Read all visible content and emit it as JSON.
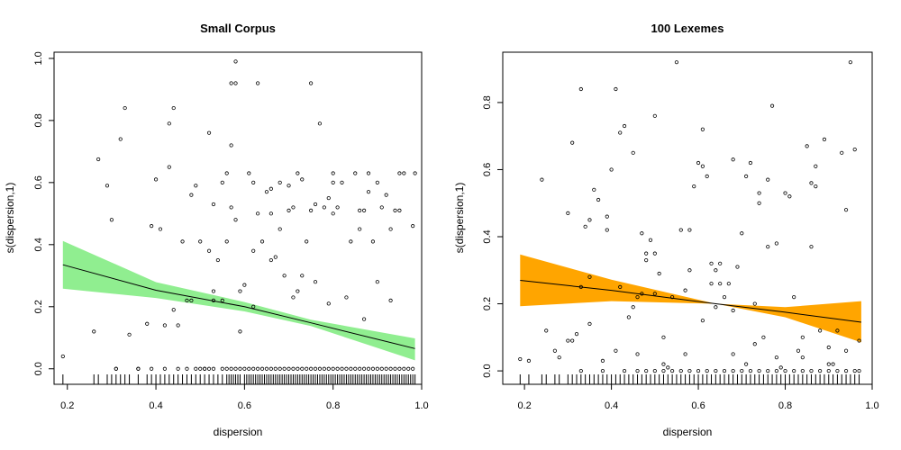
{
  "chart_data": [
    {
      "type": "scatter",
      "title": "Small Corpus",
      "xlabel": "dispersion",
      "ylabel": "s(dispersion,1)",
      "xlim": [
        0.17,
        1.0
      ],
      "ylim": [
        -0.05,
        1.02
      ],
      "xticks": [
        "0.2",
        "0.4",
        "0.6",
        "0.8",
        "1.0"
      ],
      "yticks": [
        "0.0",
        "0.2",
        "0.4",
        "0.6",
        "0.8",
        "1.0"
      ],
      "band_color": "#90EE90",
      "grid": false,
      "smooth": {
        "x": [
          0.19,
          0.4,
          0.6,
          0.75,
          0.985
        ],
        "fit": [
          0.335,
          0.253,
          0.2,
          0.148,
          0.065
        ],
        "lower": [
          0.258,
          0.228,
          0.185,
          0.138,
          0.027
        ],
        "upper": [
          0.412,
          0.279,
          0.215,
          0.158,
          0.098
        ]
      },
      "points": [
        [
          0.19,
          0.04
        ],
        [
          0.26,
          0.12
        ],
        [
          0.27,
          0.675
        ],
        [
          0.29,
          0.59
        ],
        [
          0.3,
          0.48
        ],
        [
          0.31,
          0.0
        ],
        [
          0.32,
          0.74
        ],
        [
          0.33,
          0.84
        ],
        [
          0.34,
          0.11
        ],
        [
          0.36,
          0.0
        ],
        [
          0.38,
          0.145
        ],
        [
          0.39,
          0.46
        ],
        [
          0.4,
          0.61
        ],
        [
          0.41,
          0.45
        ],
        [
          0.42,
          0.14
        ],
        [
          0.43,
          0.65
        ],
        [
          0.43,
          0.79
        ],
        [
          0.44,
          0.19
        ],
        [
          0.44,
          0.84
        ],
        [
          0.45,
          0.14
        ],
        [
          0.46,
          0.41
        ],
        [
          0.47,
          0.22
        ],
        [
          0.48,
          0.56
        ],
        [
          0.48,
          0.22
        ],
        [
          0.49,
          0.59
        ],
        [
          0.5,
          0.41
        ],
        [
          0.51,
          0.0
        ],
        [
          0.52,
          0.76
        ],
        [
          0.52,
          0.38
        ],
        [
          0.53,
          0.25
        ],
        [
          0.53,
          0.53
        ],
        [
          0.54,
          0.35
        ],
        [
          0.55,
          0.6
        ],
        [
          0.55,
          0.22
        ],
        [
          0.56,
          0.41
        ],
        [
          0.56,
          0.63
        ],
        [
          0.57,
          0.92
        ],
        [
          0.57,
          0.72
        ],
        [
          0.57,
          0.52
        ],
        [
          0.58,
          0.92
        ],
        [
          0.58,
          0.48
        ],
        [
          0.58,
          0.99
        ],
        [
          0.59,
          0.12
        ],
        [
          0.59,
          0.25
        ],
        [
          0.6,
          0.27
        ],
        [
          0.61,
          0.63
        ],
        [
          0.62,
          0.38
        ],
        [
          0.62,
          0.6
        ],
        [
          0.63,
          0.92
        ],
        [
          0.63,
          0.5
        ],
        [
          0.64,
          0.41
        ],
        [
          0.65,
          0.57
        ],
        [
          0.66,
          0.35
        ],
        [
          0.66,
          0.5
        ],
        [
          0.67,
          0.36
        ],
        [
          0.68,
          0.6
        ],
        [
          0.69,
          0.3
        ],
        [
          0.7,
          0.51
        ],
        [
          0.7,
          0.59
        ],
        [
          0.71,
          0.52
        ],
        [
          0.72,
          0.25
        ],
        [
          0.72,
          0.63
        ],
        [
          0.73,
          0.61
        ],
        [
          0.74,
          0.41
        ],
        [
          0.75,
          0.51
        ],
        [
          0.75,
          0.92
        ],
        [
          0.76,
          0.53
        ],
        [
          0.77,
          0.79
        ],
        [
          0.78,
          0.52
        ],
        [
          0.79,
          0.21
        ],
        [
          0.8,
          0.6
        ],
        [
          0.8,
          0.63
        ],
        [
          0.81,
          0.52
        ],
        [
          0.82,
          0.6
        ],
        [
          0.83,
          0.23
        ],
        [
          0.84,
          0.41
        ],
        [
          0.85,
          0.63
        ],
        [
          0.86,
          0.51
        ],
        [
          0.87,
          0.16
        ],
        [
          0.88,
          0.57
        ],
        [
          0.88,
          0.63
        ],
        [
          0.89,
          0.41
        ],
        [
          0.9,
          0.28
        ],
        [
          0.91,
          0.52
        ],
        [
          0.92,
          0.56
        ],
        [
          0.93,
          0.22
        ],
        [
          0.94,
          0.51
        ],
        [
          0.95,
          0.51
        ],
        [
          0.96,
          0.63
        ],
        [
          0.98,
          0.46
        ],
        [
          0.985,
          0.63
        ],
        [
          0.53,
          0.22
        ],
        [
          0.62,
          0.2
        ],
        [
          0.66,
          0.58
        ],
        [
          0.68,
          0.45
        ],
        [
          0.73,
          0.3
        ],
        [
          0.76,
          0.28
        ],
        [
          0.8,
          0.5
        ],
        [
          0.86,
          0.45
        ],
        [
          0.9,
          0.6
        ],
        [
          0.93,
          0.45
        ],
        [
          0.95,
          0.63
        ],
        [
          0.71,
          0.23
        ],
        [
          0.79,
          0.55
        ],
        [
          0.87,
          0.51
        ]
      ],
      "zero_points": [
        0.31,
        0.36,
        0.39,
        0.42,
        0.45,
        0.47,
        0.49,
        0.5,
        0.51,
        0.52,
        0.53,
        0.55,
        0.56,
        0.57,
        0.58,
        0.59,
        0.6,
        0.61,
        0.62,
        0.63,
        0.64,
        0.65,
        0.66,
        0.67,
        0.68,
        0.69,
        0.7,
        0.71,
        0.72,
        0.73,
        0.74,
        0.75,
        0.76,
        0.77,
        0.78,
        0.79,
        0.8,
        0.81,
        0.82,
        0.83,
        0.84,
        0.85,
        0.86,
        0.87,
        0.88,
        0.89,
        0.9,
        0.91,
        0.92,
        0.93,
        0.94,
        0.95,
        0.96,
        0.97,
        0.98
      ],
      "rug": [
        0.19,
        0.26,
        0.27,
        0.29,
        0.3,
        0.31,
        0.32,
        0.33,
        0.34,
        0.36,
        0.38,
        0.39,
        0.4,
        0.41,
        0.42,
        0.43,
        0.44,
        0.45,
        0.46,
        0.47,
        0.48,
        0.49,
        0.5,
        0.51,
        0.52,
        0.53,
        0.54,
        0.55,
        0.56,
        0.565,
        0.57,
        0.575,
        0.58,
        0.585,
        0.59,
        0.6,
        0.605,
        0.61,
        0.615,
        0.62,
        0.625,
        0.63,
        0.635,
        0.64,
        0.645,
        0.65,
        0.655,
        0.66,
        0.665,
        0.67,
        0.675,
        0.68,
        0.685,
        0.69,
        0.695,
        0.7,
        0.705,
        0.71,
        0.715,
        0.72,
        0.725,
        0.73,
        0.735,
        0.74,
        0.745,
        0.75,
        0.755,
        0.76,
        0.765,
        0.77,
        0.775,
        0.78,
        0.785,
        0.79,
        0.795,
        0.8,
        0.805,
        0.81,
        0.815,
        0.82,
        0.825,
        0.83,
        0.835,
        0.84,
        0.845,
        0.85,
        0.855,
        0.86,
        0.865,
        0.87,
        0.875,
        0.88,
        0.885,
        0.89,
        0.895,
        0.9,
        0.905,
        0.91,
        0.915,
        0.92,
        0.925,
        0.93,
        0.935,
        0.94,
        0.945,
        0.95,
        0.955,
        0.96,
        0.965,
        0.97,
        0.975,
        0.98,
        0.985
      ]
    },
    {
      "type": "scatter",
      "title": "100 Lexemes",
      "xlabel": "dispersion",
      "ylabel": "s(dispersion,1)",
      "xlim": [
        0.15,
        1.0
      ],
      "ylim": [
        -0.04,
        0.95
      ],
      "xticks": [
        "0.2",
        "0.4",
        "0.6",
        "0.8",
        "1.0"
      ],
      "yticks": [
        "0.0",
        "0.2",
        "0.4",
        "0.6",
        "0.8"
      ],
      "band_color": "#FFA500",
      "grid": false,
      "smooth": {
        "x": [
          0.19,
          0.4,
          0.64,
          0.8,
          0.975
        ],
        "fit": [
          0.27,
          0.24,
          0.2,
          0.175,
          0.145
        ],
        "lower": [
          0.193,
          0.208,
          0.2,
          0.16,
          0.085
        ],
        "upper": [
          0.347,
          0.272,
          0.2,
          0.19,
          0.208
        ]
      },
      "points": [
        [
          0.19,
          0.035
        ],
        [
          0.21,
          0.03
        ],
        [
          0.24,
          0.57
        ],
        [
          0.25,
          0.12
        ],
        [
          0.27,
          0.06
        ],
        [
          0.28,
          0.04
        ],
        [
          0.3,
          0.47
        ],
        [
          0.31,
          0.09
        ],
        [
          0.31,
          0.68
        ],
        [
          0.32,
          0.11
        ],
        [
          0.33,
          0.84
        ],
        [
          0.33,
          0.25
        ],
        [
          0.34,
          0.43
        ],
        [
          0.35,
          0.45
        ],
        [
          0.35,
          0.14
        ],
        [
          0.36,
          0.54
        ],
        [
          0.37,
          0.51
        ],
        [
          0.38,
          0.03
        ],
        [
          0.39,
          0.42
        ],
        [
          0.39,
          0.46
        ],
        [
          0.4,
          0.6
        ],
        [
          0.41,
          0.84
        ],
        [
          0.41,
          0.06
        ],
        [
          0.42,
          0.25
        ],
        [
          0.42,
          0.71
        ],
        [
          0.43,
          0.73
        ],
        [
          0.44,
          0.16
        ],
        [
          0.45,
          0.65
        ],
        [
          0.45,
          0.19
        ],
        [
          0.46,
          0.22
        ],
        [
          0.47,
          0.41
        ],
        [
          0.47,
          0.23
        ],
        [
          0.48,
          0.35
        ],
        [
          0.48,
          0.33
        ],
        [
          0.49,
          0.39
        ],
        [
          0.5,
          0.23
        ],
        [
          0.5,
          0.76
        ],
        [
          0.51,
          0.29
        ],
        [
          0.52,
          0.02
        ],
        [
          0.53,
          0.01
        ],
        [
          0.54,
          0.22
        ],
        [
          0.55,
          0.92
        ],
        [
          0.56,
          0.42
        ],
        [
          0.57,
          0.05
        ],
        [
          0.58,
          0.3
        ],
        [
          0.59,
          0.55
        ],
        [
          0.6,
          0.62
        ],
        [
          0.61,
          0.61
        ],
        [
          0.61,
          0.72
        ],
        [
          0.62,
          0.58
        ],
        [
          0.63,
          0.26
        ],
        [
          0.63,
          0.32
        ],
        [
          0.64,
          0.3
        ],
        [
          0.65,
          0.32
        ],
        [
          0.66,
          0.22
        ],
        [
          0.67,
          0.26
        ],
        [
          0.68,
          0.63
        ],
        [
          0.68,
          0.18
        ],
        [
          0.69,
          0.31
        ],
        [
          0.7,
          0.41
        ],
        [
          0.71,
          0.02
        ],
        [
          0.72,
          0.62
        ],
        [
          0.73,
          0.2
        ],
        [
          0.74,
          0.53
        ],
        [
          0.74,
          0.5
        ],
        [
          0.75,
          0.1
        ],
        [
          0.76,
          0.37
        ],
        [
          0.77,
          0.79
        ],
        [
          0.78,
          0.38
        ],
        [
          0.79,
          0.01
        ],
        [
          0.8,
          0.53
        ],
        [
          0.81,
          0.52
        ],
        [
          0.82,
          0.22
        ],
        [
          0.83,
          0.06
        ],
        [
          0.84,
          0.04
        ],
        [
          0.85,
          0.67
        ],
        [
          0.86,
          0.37
        ],
        [
          0.86,
          0.56
        ],
        [
          0.87,
          0.61
        ],
        [
          0.88,
          0.12
        ],
        [
          0.89,
          0.69
        ],
        [
          0.9,
          0.07
        ],
        [
          0.91,
          0.02
        ],
        [
          0.92,
          0.12
        ],
        [
          0.93,
          0.65
        ],
        [
          0.94,
          0.48
        ],
        [
          0.95,
          0.92
        ],
        [
          0.96,
          0.66
        ],
        [
          0.97,
          0.09
        ],
        [
          0.78,
          0.04
        ],
        [
          0.84,
          0.1
        ],
        [
          0.9,
          0.02
        ],
        [
          0.94,
          0.06
        ],
        [
          0.68,
          0.05
        ],
        [
          0.71,
          0.58
        ],
        [
          0.76,
          0.57
        ],
        [
          0.61,
          0.15
        ],
        [
          0.57,
          0.24
        ],
        [
          0.46,
          0.05
        ],
        [
          0.3,
          0.09
        ],
        [
          0.58,
          0.42
        ],
        [
          0.65,
          0.26
        ],
        [
          0.87,
          0.55
        ],
        [
          0.64,
          0.19
        ],
        [
          0.5,
          0.35
        ],
        [
          0.35,
          0.28
        ],
        [
          0.52,
          0.1
        ],
        [
          0.73,
          0.08
        ]
      ],
      "zero_points": [
        0.33,
        0.38,
        0.43,
        0.46,
        0.48,
        0.5,
        0.52,
        0.54,
        0.56,
        0.58,
        0.6,
        0.62,
        0.64,
        0.66,
        0.68,
        0.7,
        0.72,
        0.74,
        0.76,
        0.78,
        0.8,
        0.82,
        0.84,
        0.86,
        0.88,
        0.9,
        0.92,
        0.94,
        0.96,
        0.97
      ],
      "rug": [
        0.19,
        0.21,
        0.24,
        0.25,
        0.27,
        0.28,
        0.3,
        0.31,
        0.32,
        0.33,
        0.34,
        0.35,
        0.36,
        0.37,
        0.38,
        0.39,
        0.4,
        0.41,
        0.42,
        0.43,
        0.44,
        0.45,
        0.46,
        0.47,
        0.48,
        0.49,
        0.5,
        0.51,
        0.52,
        0.53,
        0.54,
        0.55,
        0.56,
        0.57,
        0.58,
        0.59,
        0.6,
        0.61,
        0.62,
        0.63,
        0.64,
        0.65,
        0.66,
        0.67,
        0.68,
        0.69,
        0.7,
        0.71,
        0.72,
        0.73,
        0.74,
        0.75,
        0.76,
        0.77,
        0.78,
        0.79,
        0.8,
        0.81,
        0.82,
        0.83,
        0.84,
        0.85,
        0.86,
        0.87,
        0.88,
        0.89,
        0.9,
        0.91,
        0.92,
        0.93,
        0.94,
        0.95,
        0.96,
        0.97
      ]
    }
  ]
}
